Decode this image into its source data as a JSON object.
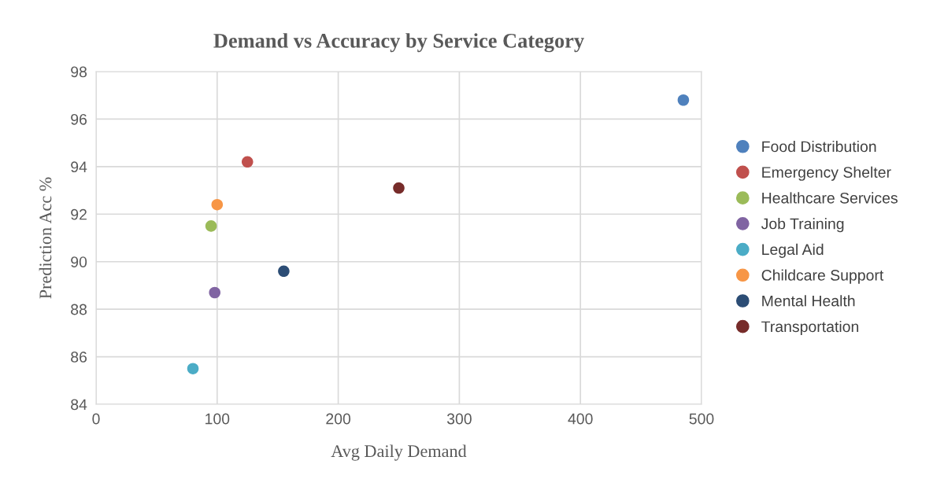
{
  "chart_data": {
    "type": "scatter",
    "title": "Demand vs Accuracy by Service Category",
    "xlabel": "Avg Daily Demand",
    "ylabel": "Prediction Acc %",
    "xlim": [
      0,
      500
    ],
    "xticks": [
      0,
      100,
      200,
      300,
      400,
      500
    ],
    "ylim": [
      84,
      98
    ],
    "yticks": [
      84,
      86,
      88,
      90,
      92,
      94,
      96,
      98
    ],
    "grid": true,
    "legend": "right",
    "marker": "circle",
    "series": [
      {
        "name": "Food Distribution",
        "color": "#4f81bd",
        "x": [
          485
        ],
        "values": [
          96.8
        ]
      },
      {
        "name": "Emergency Shelter",
        "color": "#c0504d",
        "x": [
          125
        ],
        "values": [
          94.2
        ]
      },
      {
        "name": "Healthcare Services",
        "color": "#9bbb59",
        "x": [
          95
        ],
        "values": [
          91.5
        ]
      },
      {
        "name": "Job Training",
        "color": "#8064a2",
        "x": [
          98
        ],
        "values": [
          88.7
        ]
      },
      {
        "name": "Legal Aid",
        "color": "#4bacc6",
        "x": [
          80
        ],
        "values": [
          85.5
        ]
      },
      {
        "name": "Childcare Support",
        "color": "#f79646",
        "x": [
          100
        ],
        "values": [
          92.4
        ]
      },
      {
        "name": "Mental Health",
        "color": "#2c4d75",
        "x": [
          155
        ],
        "values": [
          89.6
        ]
      },
      {
        "name": "Transportation",
        "color": "#772c2a",
        "x": [
          250
        ],
        "values": [
          93.1
        ]
      }
    ]
  }
}
